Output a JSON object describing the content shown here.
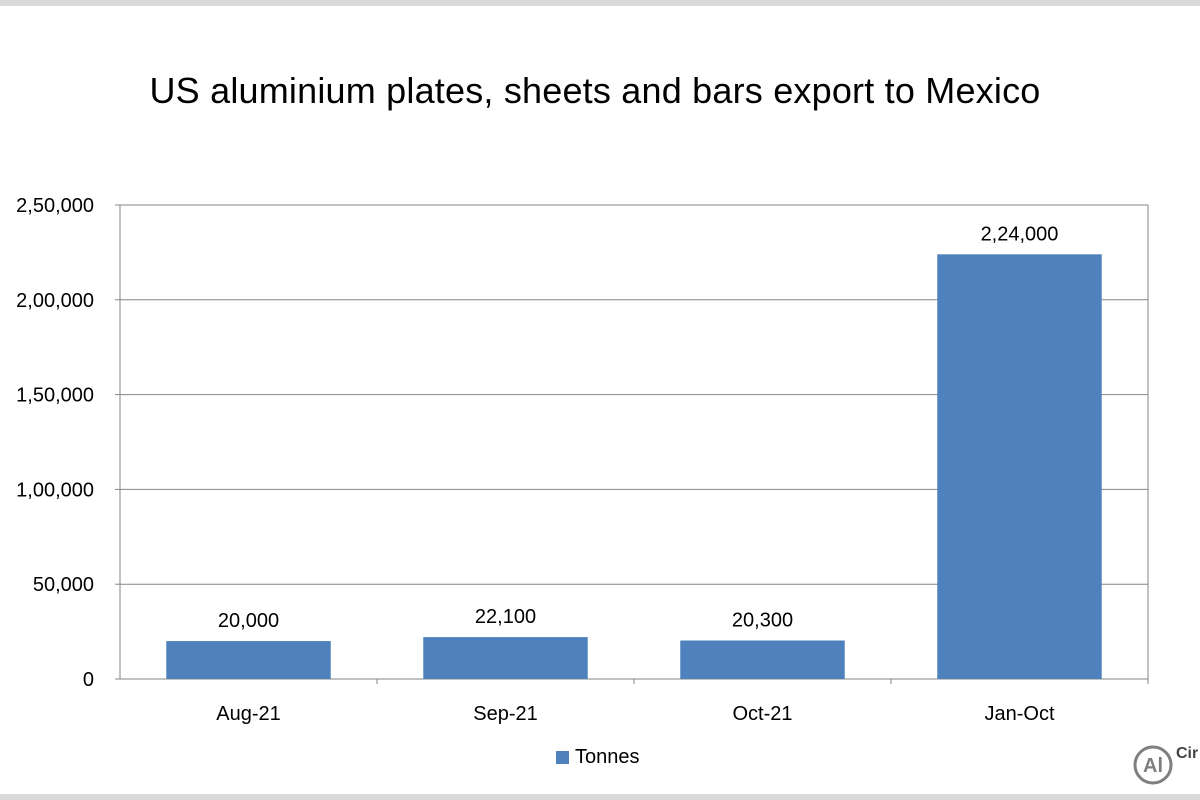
{
  "chart_data": {
    "type": "bar",
    "title": "US aluminium  plates, sheets and bars export to Mexico",
    "categories": [
      "Aug-21",
      "Sep-21",
      "Oct-21",
      "Jan-Oct"
    ],
    "series": [
      {
        "name": "Tonnes",
        "values": [
          20000,
          22100,
          20300,
          224000
        ],
        "labels": [
          "20,000",
          "22,100",
          "20,300",
          "2,24,000"
        ],
        "color": "#4f81bd"
      }
    ],
    "ylim": [
      0,
      250000
    ],
    "yticks": [
      {
        "value": 0,
        "label": "0"
      },
      {
        "value": 50000,
        "label": "50,000"
      },
      {
        "value": 100000,
        "label": "1,00,000"
      },
      {
        "value": 150000,
        "label": "1,50,000"
      },
      {
        "value": 200000,
        "label": "2,00,000"
      },
      {
        "value": 250000,
        "label": "2,50,000"
      }
    ],
    "grid": true,
    "legend_position": "bottom",
    "xlabel": "",
    "ylabel": ""
  },
  "logo": {
    "mark": "Al",
    "text": "Cir"
  }
}
